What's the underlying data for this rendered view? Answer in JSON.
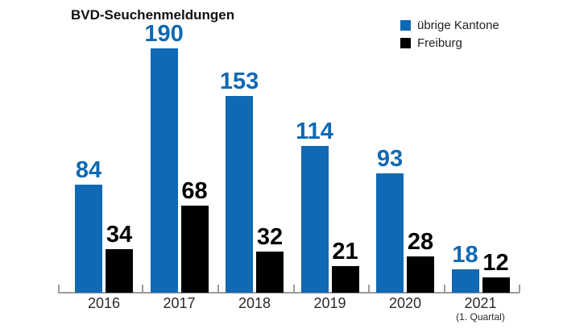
{
  "title": "BVD-Seuchenmeldungen",
  "legend": {
    "items": [
      {
        "label": "übrige Kantone",
        "color": "#0f69b4"
      },
      {
        "label": "Freiburg",
        "color": "#000000"
      }
    ]
  },
  "chart_data": {
    "type": "bar",
    "title": "BVD-Seuchenmeldungen",
    "categories": [
      "2016",
      "2017",
      "2018",
      "2019",
      "2020",
      "2021"
    ],
    "category_sublabels": [
      "",
      "",
      "",
      "",
      "",
      "(1. Quartal)"
    ],
    "series": [
      {
        "name": "übrige Kantone",
        "color": "#0f69b4",
        "values": [
          84,
          190,
          153,
          114,
          93,
          18
        ]
      },
      {
        "name": "Freiburg",
        "color": "#000000",
        "values": [
          34,
          68,
          32,
          21,
          28,
          12
        ]
      }
    ],
    "ylim": [
      0,
      190
    ],
    "grid": false,
    "legend_position": "top-right",
    "data_labels": true,
    "xlabel": "",
    "ylabel": ""
  },
  "colors": {
    "axis": "#9b9b9b",
    "title_text": "#111111",
    "year_text": "#2a2a2a"
  }
}
